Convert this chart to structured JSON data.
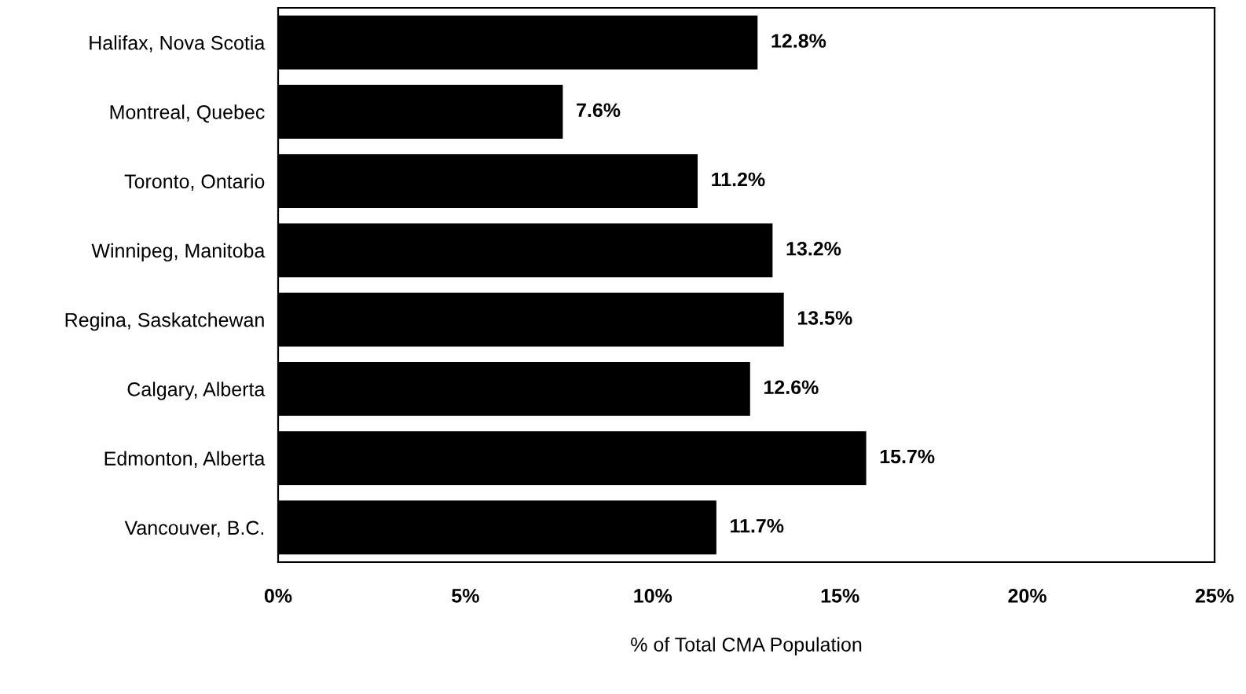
{
  "chart_data": {
    "type": "bar",
    "orientation": "horizontal",
    "xlabel": "% of Total CMA Population",
    "categories": [
      "Halifax, Nova Scotia",
      "Montreal, Quebec",
      "Toronto, Ontario",
      "Winnipeg, Manitoba",
      "Regina, Saskatchewan",
      "Calgary, Alberta",
      "Edmonton, Alberta",
      "Vancouver, B.C."
    ],
    "values": [
      12.8,
      7.6,
      11.2,
      13.2,
      13.5,
      12.6,
      15.7,
      11.7
    ],
    "value_labels": [
      "12.8%",
      "7.6%",
      "11.2%",
      "13.2%",
      "13.5%",
      "12.6%",
      "15.7%",
      "11.7%"
    ],
    "color": "#000000",
    "xlim": [
      0,
      25
    ],
    "xticks": [
      {
        "value": 0,
        "label": "0%"
      },
      {
        "value": 5,
        "label": "5%"
      },
      {
        "value": 10,
        "label": "10%"
      },
      {
        "value": 15,
        "label": "15%"
      },
      {
        "value": 20,
        "label": "20%"
      },
      {
        "value": 25,
        "label": "25%"
      }
    ],
    "grid": false,
    "legend": false
  }
}
